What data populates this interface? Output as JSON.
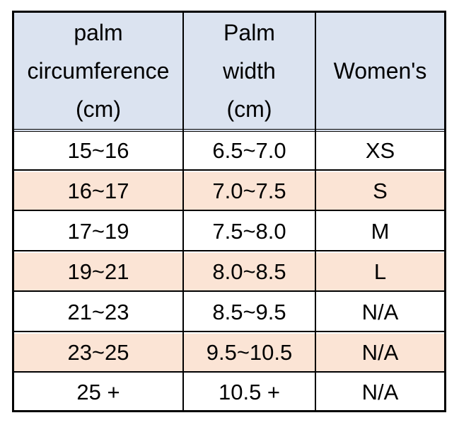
{
  "table": {
    "headers": [
      [
        "palm",
        "circumference",
        "(cm)"
      ],
      [
        "Palm",
        "width",
        "(cm)"
      ],
      [
        "Women's"
      ]
    ],
    "rows": [
      [
        "15~16",
        "6.5~7.0",
        "XS"
      ],
      [
        "16~17",
        "7.0~7.5",
        "S"
      ],
      [
        "17~19",
        "7.5~8.0",
        "M"
      ],
      [
        "19~21",
        "8.0~8.5",
        "L"
      ],
      [
        "21~23",
        "8.5~9.5",
        "N/A"
      ],
      [
        "23~25",
        "9.5~10.5",
        "N/A"
      ],
      [
        "25 +",
        "10.5 +",
        "N/A"
      ]
    ],
    "colors": {
      "header_bg": "#dbe3f0",
      "alt_row_bg": "#fbe4d5",
      "row_bg": "#ffffff",
      "border": "#000000"
    }
  }
}
